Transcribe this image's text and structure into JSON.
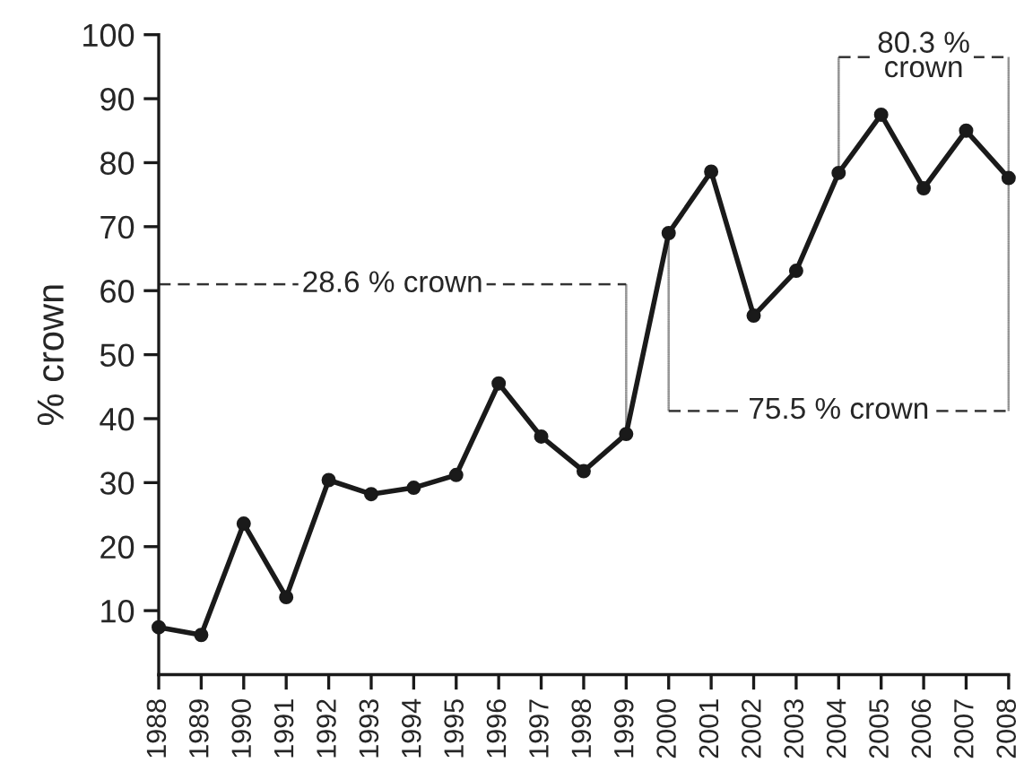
{
  "chart_data": {
    "type": "line",
    "ylabel": "% crown",
    "categories": [
      "1988",
      "1989",
      "1990",
      "1991",
      "1992",
      "1993",
      "1994",
      "1995",
      "1996",
      "1997",
      "1998",
      "1999",
      "2000",
      "2001",
      "2002",
      "2003",
      "2004",
      "2005",
      "2006",
      "2007",
      "2008"
    ],
    "series": [
      {
        "color": "#1a1a1a",
        "values": [
          7.4,
          6.2,
          23.6,
          12.1,
          30.4,
          28.2,
          29.2,
          31.2,
          45.5,
          37.2,
          31.8,
          37.6,
          69.0,
          78.6,
          56.1,
          63.1,
          78.4,
          87.5,
          76.0,
          85.0,
          77.6
        ]
      }
    ],
    "ylim": [
      0,
      100
    ],
    "yticks": [
      10,
      20,
      30,
      40,
      50,
      60,
      70,
      80,
      90,
      100
    ],
    "marker": "circle",
    "line_style": "solid",
    "grid": false,
    "legend": false,
    "annotations": [
      "28.6 % crown",
      "75.5 % crown",
      "80.3 %\ncrown"
    ]
  }
}
